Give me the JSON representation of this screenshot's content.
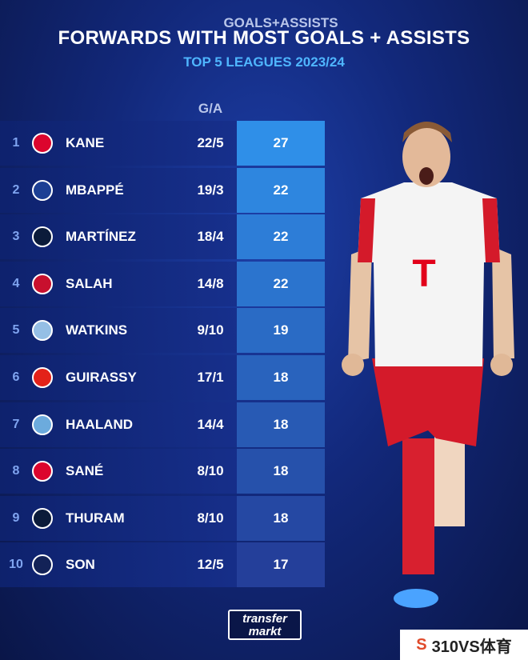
{
  "header": {
    "title": "FORWARDS WITH MOST GOALS + ASSISTS",
    "subtitle": "TOP 5 LEAGUES 2023/24"
  },
  "columns": {
    "ga": "G/A",
    "total_line1": "GOALS+",
    "total_line2": "ASSISTS"
  },
  "rows": [
    {
      "rank": "1",
      "name": "KANE",
      "ga": "22/5",
      "total": "27",
      "club_icon": "bayern-crest-icon",
      "crest_color": "#dc052d"
    },
    {
      "rank": "2",
      "name": "MBAPPÉ",
      "ga": "19/3",
      "total": "22",
      "club_icon": "psg-crest-icon",
      "crest_color": "#1c3f94"
    },
    {
      "rank": "3",
      "name": "MARTÍNEZ",
      "ga": "18/4",
      "total": "22",
      "club_icon": "inter-crest-icon",
      "crest_color": "#0b1b3a"
    },
    {
      "rank": "4",
      "name": "SALAH",
      "ga": "14/8",
      "total": "22",
      "club_icon": "liverpool-crest-icon",
      "crest_color": "#c8102e"
    },
    {
      "rank": "5",
      "name": "WATKINS",
      "ga": "9/10",
      "total": "19",
      "club_icon": "aston-villa-crest-icon",
      "crest_color": "#95bfe5"
    },
    {
      "rank": "6",
      "name": "GUIRASSY",
      "ga": "17/1",
      "total": "18",
      "club_icon": "stuttgart-crest-icon",
      "crest_color": "#e32219"
    },
    {
      "rank": "7",
      "name": "HAALAND",
      "ga": "14/4",
      "total": "18",
      "club_icon": "man-city-crest-icon",
      "crest_color": "#6cabdd"
    },
    {
      "rank": "8",
      "name": "SANÉ",
      "ga": "8/10",
      "total": "18",
      "club_icon": "bayern-crest-icon",
      "crest_color": "#dc052d"
    },
    {
      "rank": "9",
      "name": "THURAM",
      "ga": "8/10",
      "total": "18",
      "club_icon": "inter-crest-icon",
      "crest_color": "#0b1b3a"
    },
    {
      "rank": "10",
      "name": "SON",
      "ga": "12/5",
      "total": "17",
      "club_icon": "tottenham-crest-icon",
      "crest_color": "#132257"
    }
  ],
  "colors": {
    "accent_blue": "#4fb6ff",
    "total_cell_top": "#2f8fe8",
    "total_cell_bottom": "#243f9a"
  },
  "logo": {
    "line1": "transfer",
    "line2": "markt"
  },
  "watermark": {
    "text": "310VS体育"
  }
}
